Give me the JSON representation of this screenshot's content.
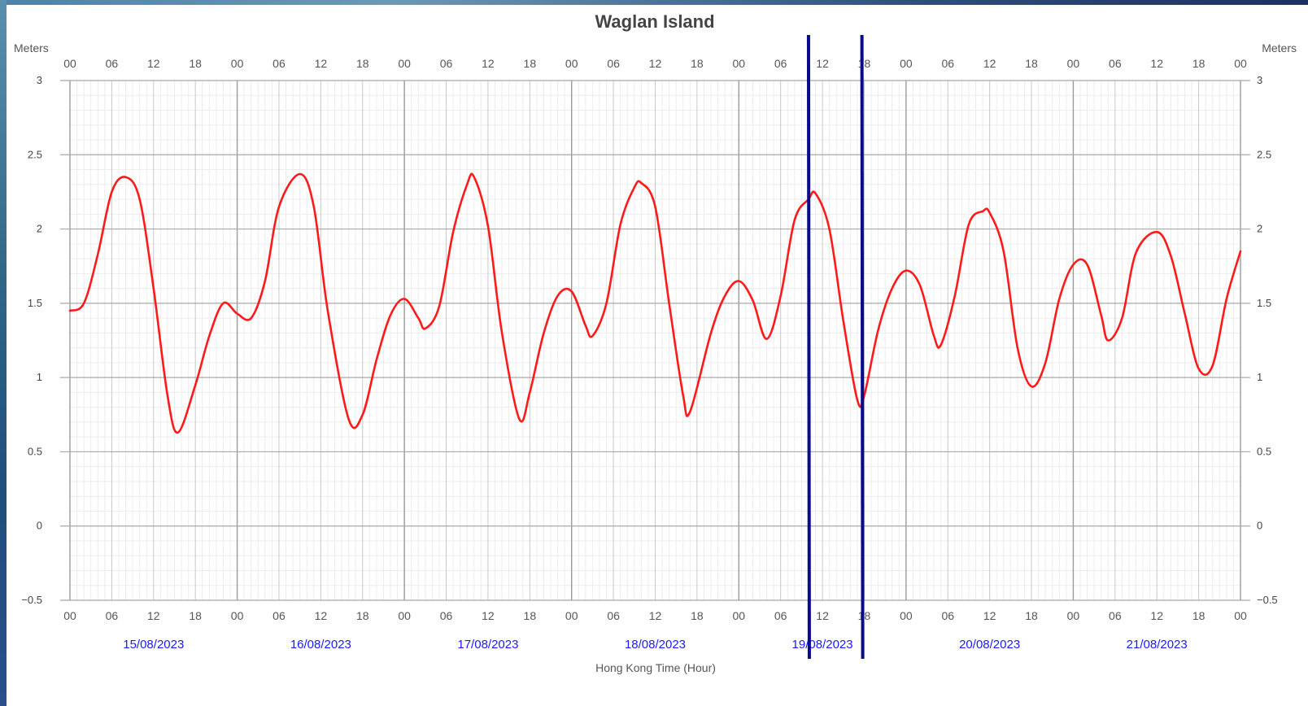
{
  "chart_data": {
    "type": "line",
    "title": "Waglan Island",
    "ylabel": "Meters",
    "ylabel_right": "Meters",
    "xlabel": "Hong Kong Time (Hour)",
    "ylim": [
      -0.5,
      3
    ],
    "yticks": [
      "3",
      "2.5",
      "2",
      "1.5",
      "1",
      "0.5",
      "0",
      "−0.5"
    ],
    "ytick_values": [
      3,
      2.5,
      2,
      1.5,
      1,
      0.5,
      0,
      -0.5
    ],
    "hour_labels": [
      "00",
      "06",
      "12",
      "18"
    ],
    "dates": [
      "15/08/2023",
      "16/08/2023",
      "17/08/2023",
      "18/08/2023",
      "19/08/2023",
      "20/08/2023",
      "21/08/2023"
    ],
    "grid": true,
    "line_color": "#ff1a1a",
    "marker_color": "#0a0a8c",
    "markers": [
      "19/08/2023 10:00",
      "19/08/2023 17:40"
    ],
    "series": [
      {
        "x": [
          "15/08/2023 00:00",
          "15/08/2023 02:00",
          "15/08/2023 04:00",
          "15/08/2023 06:00",
          "15/08/2023 08:00",
          "15/08/2023 10:00",
          "15/08/2023 12:00",
          "15/08/2023 14:00",
          "15/08/2023 15:30",
          "15/08/2023 18:00",
          "15/08/2023 20:00",
          "15/08/2023 22:00",
          "16/08/2023 00:00",
          "16/08/2023 02:00",
          "16/08/2023 04:00",
          "16/08/2023 06:00",
          "16/08/2023 09:00",
          "16/08/2023 11:00",
          "16/08/2023 13:00",
          "16/08/2023 16:00",
          "16/08/2023 18:00",
          "16/08/2023 20:00",
          "16/08/2023 22:00",
          "17/08/2023 00:00",
          "17/08/2023 02:00",
          "17/08/2023 03:00",
          "17/08/2023 05:00",
          "17/08/2023 07:00",
          "17/08/2023 09:00",
          "17/08/2023 10:00",
          "17/08/2023 12:00",
          "17/08/2023 14:00",
          "17/08/2023 16:30",
          "17/08/2023 18:00",
          "17/08/2023 20:00",
          "17/08/2023 22:00",
          "18/08/2023 00:00",
          "18/08/2023 02:00",
          "18/08/2023 03:00",
          "18/08/2023 05:00",
          "18/08/2023 07:00",
          "18/08/2023 09:00",
          "18/08/2023 10:00",
          "18/08/2023 12:00",
          "18/08/2023 14:00",
          "18/08/2023 16:00",
          "18/08/2023 17:00",
          "18/08/2023 20:00",
          "18/08/2023 22:00",
          "19/08/2023 00:00",
          "19/08/2023 02:00",
          "19/08/2023 04:00",
          "19/08/2023 06:00",
          "19/08/2023 08:00",
          "19/08/2023 10:00",
          "19/08/2023 11:00",
          "19/08/2023 13:00",
          "19/08/2023 15:00",
          "19/08/2023 17:00",
          "19/08/2023 18:00",
          "19/08/2023 20:00",
          "19/08/2023 22:00",
          "20/08/2023 00:00",
          "20/08/2023 02:00",
          "20/08/2023 04:00",
          "20/08/2023 05:00",
          "20/08/2023 07:00",
          "20/08/2023 09:00",
          "20/08/2023 11:00",
          "20/08/2023 12:00",
          "20/08/2023 14:00",
          "20/08/2023 16:00",
          "20/08/2023 18:00",
          "20/08/2023 20:00",
          "20/08/2023 22:00",
          "21/08/2023 00:00",
          "21/08/2023 02:00",
          "21/08/2023 04:00",
          "21/08/2023 05:00",
          "21/08/2023 07:00",
          "21/08/2023 09:00",
          "21/08/2023 12:00",
          "21/08/2023 14:00",
          "21/08/2023 16:00",
          "21/08/2023 18:00",
          "21/08/2023 20:00",
          "21/08/2023 22:00",
          "22/08/2023 00:00"
        ],
        "values": [
          1.45,
          1.5,
          1.83,
          2.25,
          2.35,
          2.2,
          1.6,
          0.88,
          0.63,
          0.95,
          1.28,
          1.5,
          1.43,
          1.4,
          1.65,
          2.15,
          2.37,
          2.15,
          1.45,
          0.72,
          0.75,
          1.12,
          1.42,
          1.53,
          1.4,
          1.33,
          1.48,
          1.98,
          2.3,
          2.35,
          2.02,
          1.3,
          0.72,
          0.9,
          1.3,
          1.55,
          1.58,
          1.35,
          1.28,
          1.5,
          2.03,
          2.28,
          2.31,
          2.15,
          1.5,
          0.88,
          0.77,
          1.3,
          1.55,
          1.65,
          1.52,
          1.26,
          1.55,
          2.06,
          2.2,
          2.24,
          2.0,
          1.38,
          0.85,
          0.88,
          1.32,
          1.6,
          1.72,
          1.62,
          1.28,
          1.22,
          1.55,
          2.03,
          2.12,
          2.11,
          1.85,
          1.2,
          0.94,
          1.1,
          1.53,
          1.76,
          1.76,
          1.42,
          1.25,
          1.4,
          1.84,
          1.98,
          1.82,
          1.43,
          1.06,
          1.08,
          1.53,
          1.85
        ]
      }
    ]
  }
}
